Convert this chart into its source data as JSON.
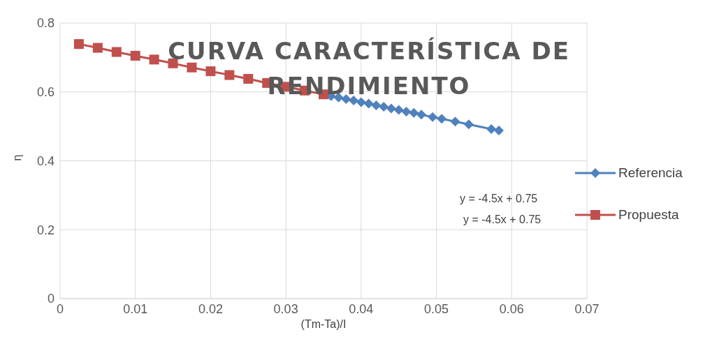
{
  "chart_data": {
    "type": "line",
    "title": "CURVA CARACTERÍSTICA DE RENDIMIENTO",
    "xlabel": "(Tm-Ta)/I",
    "ylabel": "η",
    "xlim": [
      0,
      0.07
    ],
    "xticks": [
      0,
      0.01,
      0.02,
      0.03,
      0.04,
      0.05,
      0.06,
      0.07
    ],
    "ylim": [
      0,
      0.8
    ],
    "yticks": [
      0,
      0.2,
      0.4,
      0.6,
      0.8
    ],
    "grid": true,
    "legend": "right",
    "series": [
      {
        "name": "Referencia",
        "color": "#4f81bd",
        "marker": "diamond",
        "x": [
          0.036,
          0.037,
          0.038,
          0.039,
          0.04,
          0.041,
          0.042,
          0.043,
          0.044,
          0.045,
          0.046,
          0.047,
          0.048,
          0.0495,
          0.0507,
          0.0525,
          0.0543,
          0.0573,
          0.0583
        ],
        "values": [
          0.588,
          0.584,
          0.579,
          0.575,
          0.57,
          0.566,
          0.561,
          0.557,
          0.552,
          0.548,
          0.543,
          0.539,
          0.534,
          0.527,
          0.522,
          0.514,
          0.506,
          0.492,
          0.488
        ]
      },
      {
        "name": "Propuesta",
        "color": "#c0504d",
        "marker": "square",
        "x": [
          0.0025,
          0.005,
          0.0075,
          0.01,
          0.0125,
          0.015,
          0.0175,
          0.02,
          0.0225,
          0.025,
          0.0275,
          0.03,
          0.0325,
          0.035
        ],
        "values": [
          0.739,
          0.728,
          0.716,
          0.705,
          0.694,
          0.683,
          0.671,
          0.66,
          0.649,
          0.638,
          0.626,
          0.615,
          0.604,
          0.593
        ]
      }
    ],
    "annotations": [
      "y = -4.5x + 0.75",
      "y = -4.5x + 0.75"
    ]
  }
}
